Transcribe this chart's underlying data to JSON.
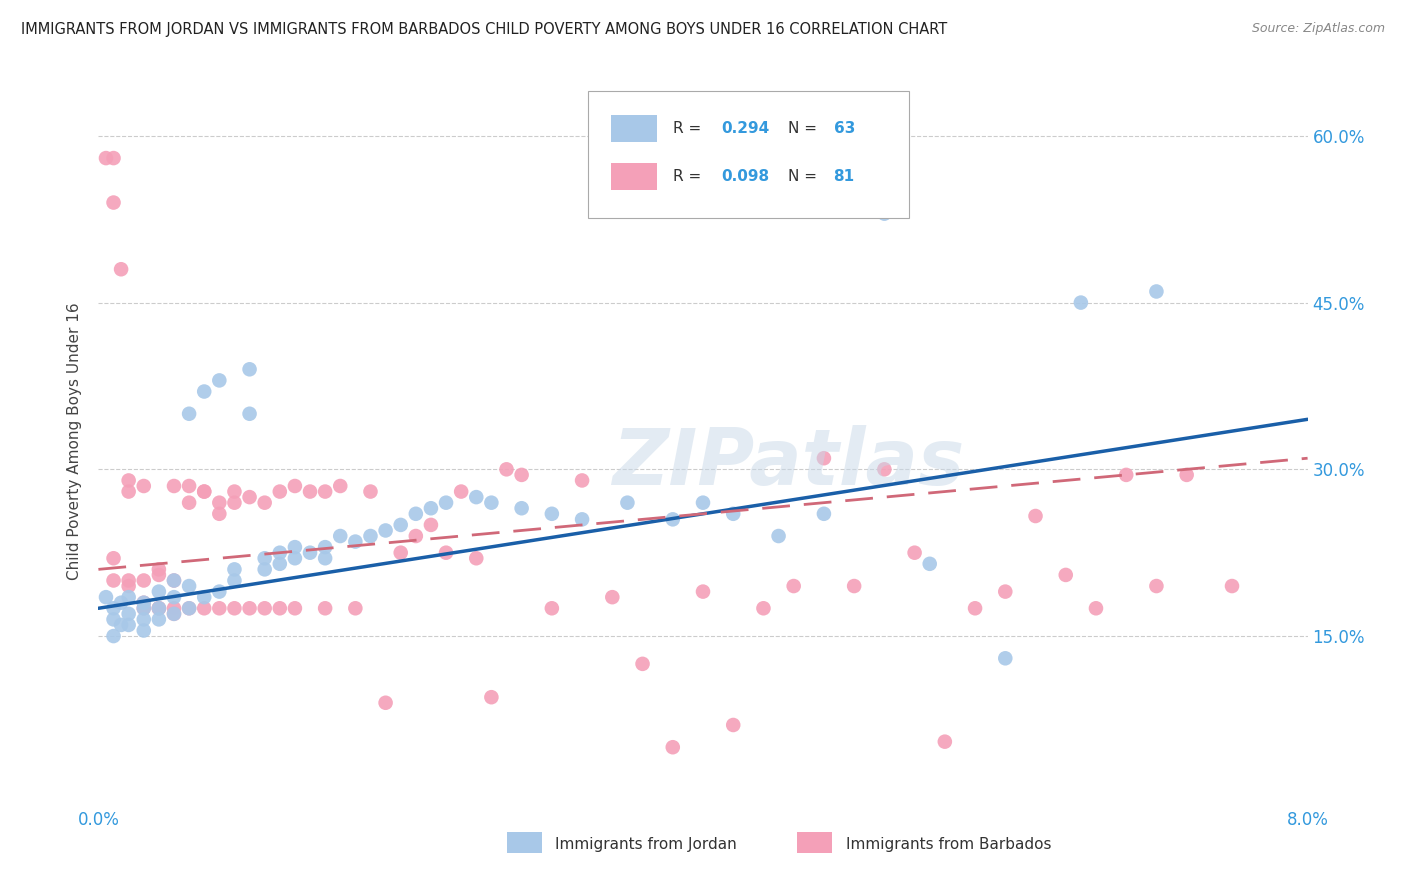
{
  "title": "IMMIGRANTS FROM JORDAN VS IMMIGRANTS FROM BARBADOS CHILD POVERTY AMONG BOYS UNDER 16 CORRELATION CHART",
  "source": "Source: ZipAtlas.com",
  "ylabel": "Child Poverty Among Boys Under 16",
  "yticks": [
    "15.0%",
    "30.0%",
    "45.0%",
    "60.0%"
  ],
  "ytick_vals": [
    0.15,
    0.3,
    0.45,
    0.6
  ],
  "xlim": [
    0.0,
    0.08
  ],
  "ylim": [
    0.0,
    0.65
  ],
  "jordan_R": 0.294,
  "jordan_N": 63,
  "barbados_R": 0.098,
  "barbados_N": 81,
  "jordan_color": "#a8c8e8",
  "barbados_color": "#f4a0b8",
  "jordan_line_color": "#1a5fa8",
  "barbados_line_color": "#d06878",
  "background_color": "#ffffff",
  "watermark": "ZIPatlas",
  "jordan_x": [
    0.0005,
    0.001,
    0.001,
    0.001,
    0.0015,
    0.0015,
    0.002,
    0.002,
    0.002,
    0.003,
    0.003,
    0.003,
    0.003,
    0.004,
    0.004,
    0.004,
    0.005,
    0.005,
    0.005,
    0.006,
    0.006,
    0.006,
    0.007,
    0.007,
    0.008,
    0.008,
    0.009,
    0.009,
    0.01,
    0.01,
    0.011,
    0.011,
    0.012,
    0.012,
    0.013,
    0.013,
    0.014,
    0.015,
    0.015,
    0.016,
    0.017,
    0.018,
    0.019,
    0.02,
    0.021,
    0.022,
    0.023,
    0.025,
    0.026,
    0.028,
    0.03,
    0.032,
    0.035,
    0.038,
    0.04,
    0.042,
    0.045,
    0.048,
    0.052,
    0.055,
    0.06,
    0.065,
    0.07
  ],
  "jordan_y": [
    0.185,
    0.175,
    0.165,
    0.15,
    0.18,
    0.16,
    0.17,
    0.185,
    0.16,
    0.175,
    0.165,
    0.18,
    0.155,
    0.175,
    0.19,
    0.165,
    0.17,
    0.185,
    0.2,
    0.175,
    0.195,
    0.35,
    0.185,
    0.37,
    0.19,
    0.38,
    0.2,
    0.21,
    0.35,
    0.39,
    0.21,
    0.22,
    0.215,
    0.225,
    0.22,
    0.23,
    0.225,
    0.23,
    0.22,
    0.24,
    0.235,
    0.24,
    0.245,
    0.25,
    0.26,
    0.265,
    0.27,
    0.275,
    0.27,
    0.265,
    0.26,
    0.255,
    0.27,
    0.255,
    0.27,
    0.26,
    0.24,
    0.26,
    0.53,
    0.215,
    0.13,
    0.45,
    0.46
  ],
  "barbados_x": [
    0.0005,
    0.001,
    0.001,
    0.001,
    0.001,
    0.0015,
    0.002,
    0.002,
    0.002,
    0.002,
    0.003,
    0.003,
    0.003,
    0.003,
    0.004,
    0.004,
    0.004,
    0.004,
    0.005,
    0.005,
    0.005,
    0.005,
    0.006,
    0.006,
    0.006,
    0.007,
    0.007,
    0.007,
    0.008,
    0.008,
    0.008,
    0.009,
    0.009,
    0.009,
    0.01,
    0.01,
    0.011,
    0.011,
    0.012,
    0.012,
    0.013,
    0.013,
    0.014,
    0.015,
    0.015,
    0.016,
    0.017,
    0.018,
    0.019,
    0.02,
    0.021,
    0.022,
    0.023,
    0.024,
    0.025,
    0.026,
    0.027,
    0.028,
    0.03,
    0.032,
    0.034,
    0.036,
    0.038,
    0.04,
    0.042,
    0.044,
    0.046,
    0.048,
    0.05,
    0.052,
    0.054,
    0.056,
    0.058,
    0.06,
    0.062,
    0.064,
    0.066,
    0.068,
    0.07,
    0.072,
    0.075
  ],
  "barbados_y": [
    0.58,
    0.58,
    0.54,
    0.22,
    0.2,
    0.48,
    0.28,
    0.29,
    0.195,
    0.2,
    0.285,
    0.18,
    0.2,
    0.175,
    0.205,
    0.175,
    0.21,
    0.175,
    0.285,
    0.175,
    0.2,
    0.17,
    0.285,
    0.175,
    0.27,
    0.28,
    0.175,
    0.28,
    0.27,
    0.175,
    0.26,
    0.27,
    0.175,
    0.28,
    0.275,
    0.175,
    0.27,
    0.175,
    0.28,
    0.175,
    0.285,
    0.175,
    0.28,
    0.28,
    0.175,
    0.285,
    0.175,
    0.28,
    0.09,
    0.225,
    0.24,
    0.25,
    0.225,
    0.28,
    0.22,
    0.095,
    0.3,
    0.295,
    0.175,
    0.29,
    0.185,
    0.125,
    0.05,
    0.19,
    0.07,
    0.175,
    0.195,
    0.31,
    0.195,
    0.3,
    0.225,
    0.055,
    0.175,
    0.19,
    0.258,
    0.205,
    0.175,
    0.295,
    0.195,
    0.295,
    0.195
  ],
  "jordan_line_x0": 0.0,
  "jordan_line_y0": 0.175,
  "jordan_line_x1": 0.08,
  "jordan_line_y1": 0.345,
  "barbados_line_x0": 0.0,
  "barbados_line_y0": 0.21,
  "barbados_line_x1": 0.08,
  "barbados_line_y1": 0.31
}
